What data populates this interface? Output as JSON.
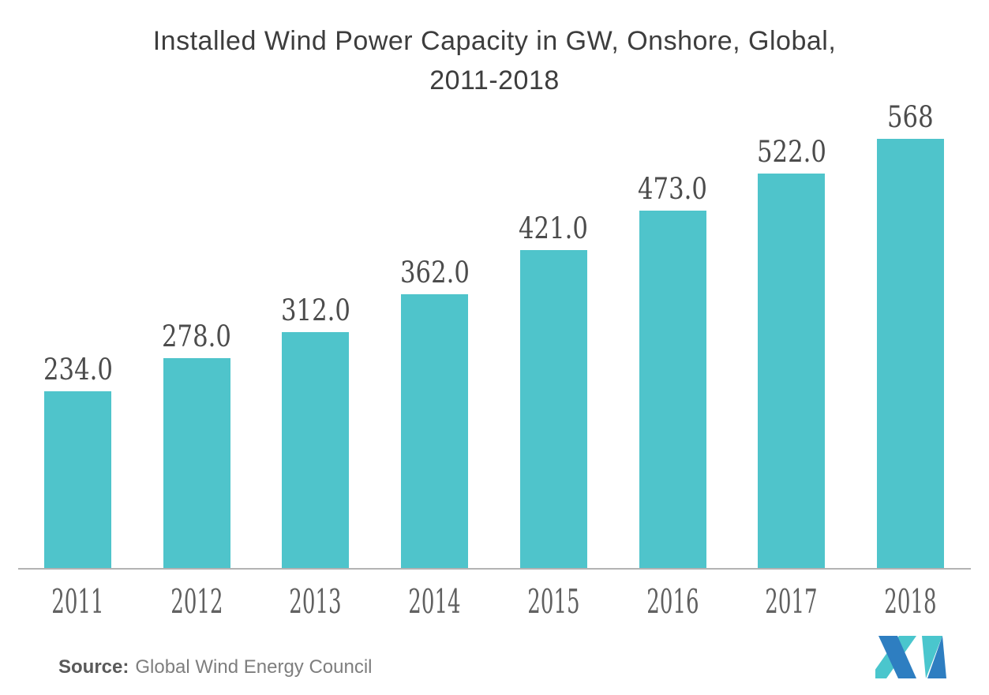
{
  "title": {
    "text": "Installed Wind Power Capacity in GW, Onshore, Global, 2011-2018",
    "lines": [
      "Installed Wind Power Capacity in GW, Onshore, Global,",
      "2011-2018"
    ]
  },
  "source": {
    "label": "Source:",
    "text": "Global Wind Energy Council"
  },
  "logo": {
    "name": "mordor-intelligence-logo"
  },
  "colors": {
    "background": "#FFFFFF",
    "bar": "#4FC4CB",
    "title": "#3D3D3D",
    "value_label": "#4C4C4C",
    "year_label": "#606060",
    "source_label": "#595959",
    "source_text": "#7E7E7E",
    "axis_line": "#B3B3B3",
    "logo_teal": "#4AC6CD",
    "logo_blue": "#2E7EC1"
  },
  "chart_data": {
    "type": "bar",
    "title": "Installed Wind Power Capacity in GW, Onshore, Global, 2011-2018",
    "categories": [
      "2011",
      "2012",
      "2013",
      "2014",
      "2015",
      "2016",
      "2017",
      "2018"
    ],
    "values": [
      234.0,
      278.0,
      312.0,
      362.0,
      421.0,
      473.0,
      522.0,
      568
    ],
    "value_labels": [
      "234.0",
      "278.0",
      "312.0",
      "362.0",
      "421.0",
      "473.0",
      "522.0",
      "568"
    ],
    "xlabel": "",
    "ylabel": "",
    "unit": "GW",
    "ylim": [
      0,
      600
    ],
    "grid": false,
    "legend": false,
    "y_axis_visible": false,
    "x_axis_visible": true,
    "data_label_position": "above-bar",
    "bar_color": "#4FC4CB"
  }
}
